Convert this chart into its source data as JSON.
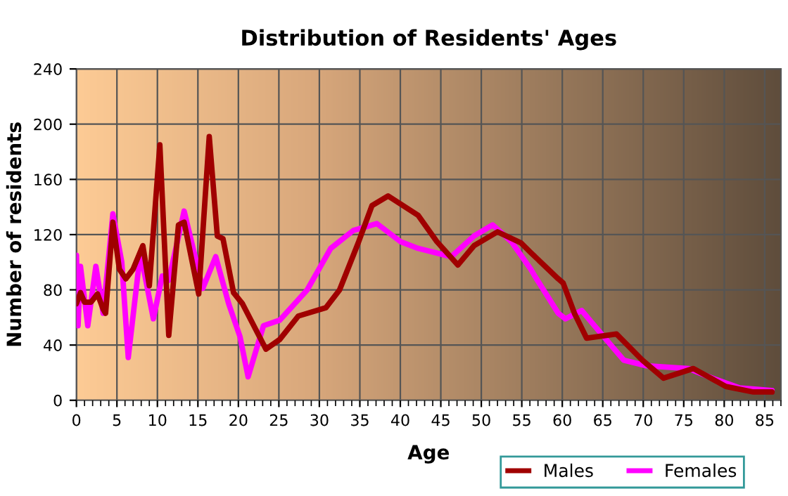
{
  "chart_data": {
    "type": "line",
    "title": "Distribution of Residents' Ages",
    "xlabel": "Age",
    "ylabel": "Number of residents",
    "xlim": [
      0,
      87
    ],
    "xticks": [
      0,
      5,
      10,
      15,
      20,
      25,
      30,
      35,
      40,
      45,
      50,
      55,
      60,
      65,
      70,
      75,
      80,
      85
    ],
    "ylim": [
      0,
      240
    ],
    "yticks": [
      0,
      40,
      80,
      120,
      160,
      200,
      240
    ],
    "grid": true,
    "legend": "bottom right",
    "line_style": "solid",
    "series": [
      {
        "name": "Males",
        "color": "#a00000",
        "x": [
          0,
          0.5,
          1.0,
          1.8,
          2.6,
          3.3,
          3.6,
          4.5,
          5.3,
          6.1,
          7.0,
          8.2,
          9.0,
          10.3,
          11.4,
          12.6,
          13.3,
          15.1,
          16.4,
          17.4,
          18.1,
          19.4,
          20.5,
          23.4,
          25.1,
          27.4,
          30.8,
          32.5,
          34.8,
          36.5,
          38.5,
          42.2,
          44.5,
          47.1,
          49.1,
          52,
          54.9,
          56.1,
          59.5,
          60.1,
          61.5,
          63,
          66.7,
          69.9,
          72.5,
          76.2,
          80.2,
          83.6,
          85.9
        ],
        "values": [
          70,
          78,
          71,
          71,
          77,
          66,
          63,
          129,
          95,
          88,
          95,
          112,
          83,
          185,
          47,
          127,
          129,
          77,
          191,
          119,
          117,
          78,
          70,
          37,
          44,
          61,
          67,
          80,
          114,
          141,
          148,
          134,
          115,
          98,
          112,
          122,
          114,
          107,
          88,
          85,
          63,
          45,
          48,
          29,
          16,
          23,
          10,
          6,
          6
        ]
      },
      {
        "name": "Females",
        "color": "#ff00ff",
        "x": [
          0,
          0.2,
          0.5,
          1.4,
          2.4,
          3.3,
          4.5,
          5.6,
          6.4,
          7.9,
          9.5,
          10.6,
          11.4,
          13.3,
          15.6,
          17.2,
          18.8,
          20.2,
          21.2,
          23.1,
          25.1,
          28.5,
          31.4,
          34.2,
          37.1,
          40,
          42.2,
          46.3,
          49.1,
          51.4,
          53.7,
          56.1,
          56.6,
          59.5,
          60.4,
          62.4,
          64.7,
          67.6,
          70.4,
          75.6,
          79,
          81.9,
          85.9
        ],
        "values": [
          105,
          54,
          97,
          54,
          97,
          63,
          135,
          100,
          31,
          107,
          59,
          90,
          87,
          137,
          81,
          104,
          70,
          46,
          17,
          54,
          58,
          80,
          110,
          123,
          128,
          115,
          110,
          104,
          119,
          127,
          115,
          95,
          90,
          63,
          59,
          65,
          49,
          29,
          25,
          23,
          15,
          9,
          7
        ]
      }
    ]
  }
}
